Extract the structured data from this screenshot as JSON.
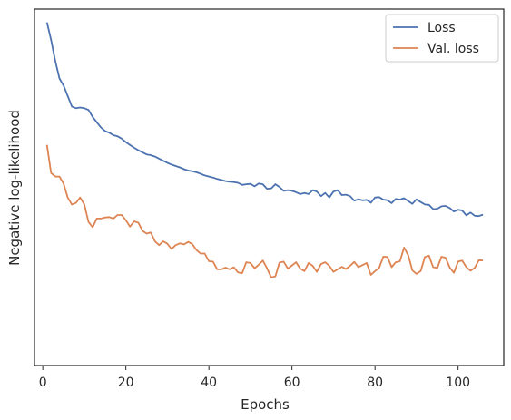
{
  "chart_data": {
    "type": "line",
    "xlabel": "Epochs",
    "ylabel": "Negative log-likelihood",
    "xlim": [
      -2,
      111
    ],
    "ylim": [
      0,
      1
    ],
    "xticks": [
      0,
      20,
      40,
      60,
      80,
      100
    ],
    "y_ticks_labeled": false,
    "grid": false,
    "legend": "top-right",
    "series": [
      {
        "name": "Loss",
        "color": "#4c72b0",
        "x": [
          1,
          2,
          3,
          4,
          5,
          6,
          7,
          8,
          9,
          10,
          11,
          12,
          13,
          14,
          15,
          16,
          17,
          18,
          19,
          20,
          21,
          22,
          23,
          24,
          25,
          26,
          27,
          28,
          29,
          30,
          31,
          32,
          33,
          34,
          35,
          36,
          37,
          38,
          39,
          40,
          41,
          42,
          43,
          44,
          45,
          46,
          47,
          48,
          49,
          50,
          51,
          52,
          53,
          54,
          55,
          56,
          57,
          58,
          59,
          60,
          61,
          62,
          63,
          64,
          65,
          66,
          67,
          68,
          69,
          70,
          71,
          72,
          73,
          74,
          75,
          76,
          77,
          78,
          79,
          80,
          81,
          82,
          83,
          84,
          85,
          86,
          87,
          88,
          89,
          90,
          91,
          92,
          93,
          94,
          95,
          96,
          97,
          98,
          99,
          100,
          101,
          102,
          103,
          104,
          105,
          106
        ],
        "y": [
          0.98,
          0.93,
          0.87,
          0.82,
          0.8,
          0.77,
          0.74,
          0.735,
          0.737,
          0.735,
          0.73,
          0.71,
          0.695,
          0.68,
          0.67,
          0.665,
          0.658,
          0.655,
          0.648,
          0.638,
          0.63,
          0.622,
          0.615,
          0.609,
          0.603,
          0.601,
          0.597,
          0.591,
          0.585,
          0.579,
          0.574,
          0.57,
          0.566,
          0.561,
          0.557,
          0.555,
          0.552,
          0.548,
          0.543,
          0.54,
          0.537,
          0.533,
          0.53,
          0.527,
          0.525,
          0.524,
          0.522,
          0.516,
          0.518,
          0.519,
          0.512,
          0.52,
          0.518,
          0.505,
          0.506,
          0.518,
          0.51,
          0.499,
          0.501,
          0.499,
          0.495,
          0.49,
          0.493,
          0.49,
          0.501,
          0.497,
          0.484,
          0.493,
          0.48,
          0.497,
          0.501,
          0.487,
          0.488,
          0.484,
          0.471,
          0.475,
          0.472,
          0.473,
          0.465,
          0.48,
          0.481,
          0.474,
          0.472,
          0.464,
          0.476,
          0.474,
          0.478,
          0.47,
          0.462,
          0.475,
          0.467,
          0.46,
          0.459,
          0.447,
          0.448,
          0.455,
          0.456,
          0.45,
          0.44,
          0.445,
          0.443,
          0.429,
          0.437,
          0.428,
          0.427,
          0.431
        ]
      },
      {
        "name": "Val. loss",
        "color": "#dd8452",
        "x": [
          1,
          2,
          3,
          4,
          5,
          6,
          7,
          8,
          9,
          10,
          11,
          12,
          13,
          14,
          15,
          16,
          17,
          18,
          19,
          20,
          21,
          22,
          23,
          24,
          25,
          26,
          27,
          28,
          29,
          30,
          31,
          32,
          33,
          34,
          35,
          36,
          37,
          38,
          39,
          40,
          41,
          42,
          43,
          44,
          45,
          46,
          47,
          48,
          49,
          50,
          51,
          52,
          53,
          54,
          55,
          56,
          57,
          58,
          59,
          60,
          61,
          62,
          63,
          64,
          65,
          66,
          67,
          68,
          69,
          70,
          71,
          72,
          73,
          74,
          75,
          76,
          77,
          78,
          79,
          80,
          81,
          82,
          83,
          84,
          85,
          86,
          87,
          88,
          89,
          90,
          91,
          92,
          93,
          94,
          95,
          96,
          97,
          98,
          99,
          100,
          101,
          102,
          103,
          104,
          105,
          106
        ],
        "y": [
          0.63,
          0.55,
          0.54,
          0.54,
          0.52,
          0.48,
          0.46,
          0.465,
          0.48,
          0.46,
          0.41,
          0.395,
          0.42,
          0.42,
          0.423,
          0.424,
          0.42,
          0.43,
          0.43,
          0.415,
          0.397,
          0.412,
          0.408,
          0.385,
          0.377,
          0.38,
          0.355,
          0.344,
          0.355,
          0.348,
          0.333,
          0.344,
          0.349,
          0.346,
          0.353,
          0.347,
          0.33,
          0.32,
          0.32,
          0.298,
          0.297,
          0.275,
          0.275,
          0.28,
          0.275,
          0.281,
          0.266,
          0.264,
          0.295,
          0.293,
          0.278,
          0.288,
          0.3,
          0.278,
          0.252,
          0.255,
          0.294,
          0.297,
          0.277,
          0.286,
          0.295,
          0.277,
          0.27,
          0.293,
          0.285,
          0.268,
          0.29,
          0.295,
          0.285,
          0.268,
          0.275,
          0.282,
          0.276,
          0.285,
          0.296,
          0.281,
          0.287,
          0.293,
          0.259,
          0.27,
          0.279,
          0.311,
          0.31,
          0.281,
          0.295,
          0.298,
          0.337,
          0.315,
          0.272,
          0.262,
          0.27,
          0.31,
          0.314,
          0.281,
          0.279,
          0.311,
          0.308,
          0.28,
          0.265,
          0.297,
          0.3,
          0.281,
          0.271,
          0.279,
          0.301,
          0.3
        ]
      }
    ]
  }
}
